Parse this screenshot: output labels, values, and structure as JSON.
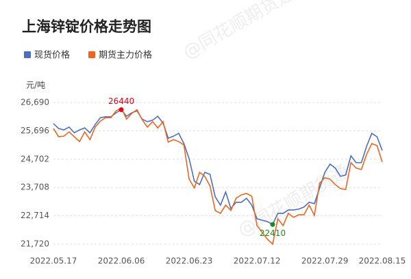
{
  "chart_data": {
    "type": "line",
    "title": "上海锌锭价格走势图",
    "y_label": "元/吨",
    "watermark": "@同花顺期货通",
    "categories": [
      "2022.05.17",
      null,
      null,
      null,
      null,
      null,
      null,
      null,
      null,
      null,
      null,
      null,
      null,
      "2022.06.06",
      null,
      null,
      null,
      null,
      null,
      null,
      null,
      null,
      null,
      null,
      null,
      null,
      "2022.06.23",
      null,
      null,
      null,
      null,
      null,
      null,
      null,
      null,
      null,
      null,
      null,
      null,
      "2022.07.12",
      null,
      null,
      null,
      null,
      null,
      null,
      null,
      null,
      null,
      null,
      null,
      null,
      "2022.07.29",
      null,
      null,
      null,
      null,
      null,
      null,
      null,
      null,
      null,
      null,
      "2022.08.15"
    ],
    "series": [
      {
        "name": "现货价格",
        "color": "#4a6cc3",
        "values": [
          25950,
          25780,
          25730,
          25830,
          25630,
          25730,
          25800,
          25630,
          25920,
          26160,
          26190,
          26190,
          26330,
          26440,
          26210,
          26330,
          26400,
          26110,
          26020,
          26070,
          26210,
          25970,
          25440,
          25510,
          25610,
          25250,
          24720,
          23930,
          23810,
          24240,
          24170,
          23380,
          23090,
          23550,
          22970,
          23190,
          23190,
          23330,
          23090,
          22610,
          22560,
          22510,
          22410,
          22800,
          22800,
          22920,
          22920,
          22950,
          23020,
          23190,
          23140,
          23690,
          24240,
          24530,
          24390,
          24100,
          24150,
          24820,
          24580,
          24580,
          25150,
          25610,
          25490,
          25010
        ]
      },
      {
        "name": "期货主力价格",
        "color": "#f0641e",
        "values": [
          25780,
          25490,
          25510,
          25660,
          25490,
          25320,
          25660,
          25390,
          25830,
          26040,
          26160,
          26160,
          26400,
          26500,
          26110,
          26310,
          26440,
          26090,
          25830,
          26020,
          25800,
          26020,
          25300,
          25390,
          25320,
          25200,
          24000,
          23690,
          24240,
          24100,
          23760,
          22900,
          22800,
          23090,
          22900,
          23330,
          23450,
          23500,
          23400,
          22370,
          22130,
          21890,
          21720,
          22610,
          22370,
          22800,
          22660,
          22750,
          22750,
          23090,
          22730,
          23860,
          24050,
          24000,
          23810,
          23670,
          23640,
          24580,
          24390,
          24340,
          24870,
          25250,
          25180,
          24600
        ]
      }
    ],
    "ylim": [
      21720,
      26690
    ],
    "yticks": [
      {
        "value": 21720,
        "label": "21,720"
      },
      {
        "value": 22714,
        "label": "22,714"
      },
      {
        "value": 23708,
        "label": "23,708"
      },
      {
        "value": 24702,
        "label": "24,702"
      },
      {
        "value": 25696,
        "label": "25,696"
      },
      {
        "value": 26690,
        "label": "26,690"
      }
    ],
    "grid": true,
    "max_color": "#e60012",
    "min_color": "#1a8a1a"
  }
}
